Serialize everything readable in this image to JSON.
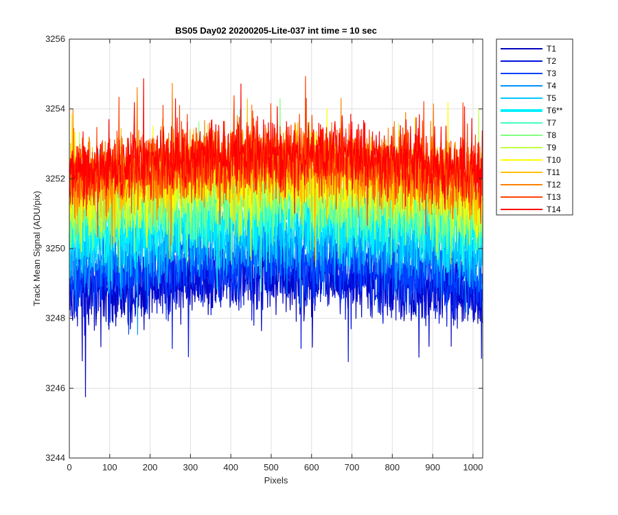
{
  "chart_data": {
    "type": "line",
    "title": "BS05 Day02 20200205-Lite-037 int time = 10 sec",
    "xlabel": "Pixels",
    "ylabel": "Track Mean Signal (ADU/pix)",
    "xlim": [
      0,
      1024
    ],
    "ylim": [
      3244,
      3256
    ],
    "xticks": [
      0,
      100,
      200,
      300,
      400,
      500,
      600,
      700,
      800,
      900,
      1000
    ],
    "yticks": [
      3244,
      3246,
      3248,
      3250,
      3252,
      3254,
      3256
    ],
    "grid": true,
    "legend_position": "outside-top-right",
    "series": [
      {
        "name": "T1",
        "color": "#0000bf",
        "mean": 3248.9,
        "noise": 1.0,
        "min": 3245.7,
        "max": 3252.0
      },
      {
        "name": "T2",
        "color": "#0010e0",
        "mean": 3249.1,
        "noise": 1.0,
        "min": 3246.0,
        "max": 3252.0
      },
      {
        "name": "T3",
        "color": "#0040ff",
        "mean": 3249.4,
        "noise": 1.0,
        "min": 3246.5,
        "max": 3252.3
      },
      {
        "name": "T4",
        "color": "#0090ff",
        "mean": 3249.9,
        "noise": 1.0,
        "min": 3247.0,
        "max": 3252.8
      },
      {
        "name": "T5",
        "color": "#00c8ff",
        "mean": 3250.3,
        "noise": 1.0,
        "min": 3247.3,
        "max": 3253.5
      },
      {
        "name": "T6**",
        "color": "#00f0ff",
        "mean": 3250.7,
        "noise": 1.0,
        "min": 3247.8,
        "max": 3255.8,
        "highlight": true
      },
      {
        "name": "T7",
        "color": "#40ffbf",
        "mean": 3251.0,
        "noise": 1.0,
        "min": 3248.0,
        "max": 3254.0
      },
      {
        "name": "T8",
        "color": "#80ff80",
        "mean": 3251.2,
        "noise": 1.0,
        "min": 3248.2,
        "max": 3254.3
      },
      {
        "name": "T9",
        "color": "#bfff40",
        "mean": 3251.5,
        "noise": 1.0,
        "min": 3248.5,
        "max": 3255.3
      },
      {
        "name": "T10",
        "color": "#ffff00",
        "mean": 3251.8,
        "noise": 1.0,
        "min": 3248.8,
        "max": 3255.0
      },
      {
        "name": "T11",
        "color": "#ffc000",
        "mean": 3252.0,
        "noise": 1.0,
        "min": 3249.0,
        "max": 3255.0
      },
      {
        "name": "T12",
        "color": "#ff8000",
        "mean": 3252.2,
        "noise": 1.0,
        "min": 3249.2,
        "max": 3255.4
      },
      {
        "name": "T13",
        "color": "#ff4000",
        "mean": 3252.3,
        "noise": 1.0,
        "min": 3249.4,
        "max": 3256.0
      },
      {
        "name": "T14",
        "color": "#ff0000",
        "mean": 3252.4,
        "noise": 0.9,
        "min": 3249.8,
        "max": 3255.3
      }
    ]
  }
}
